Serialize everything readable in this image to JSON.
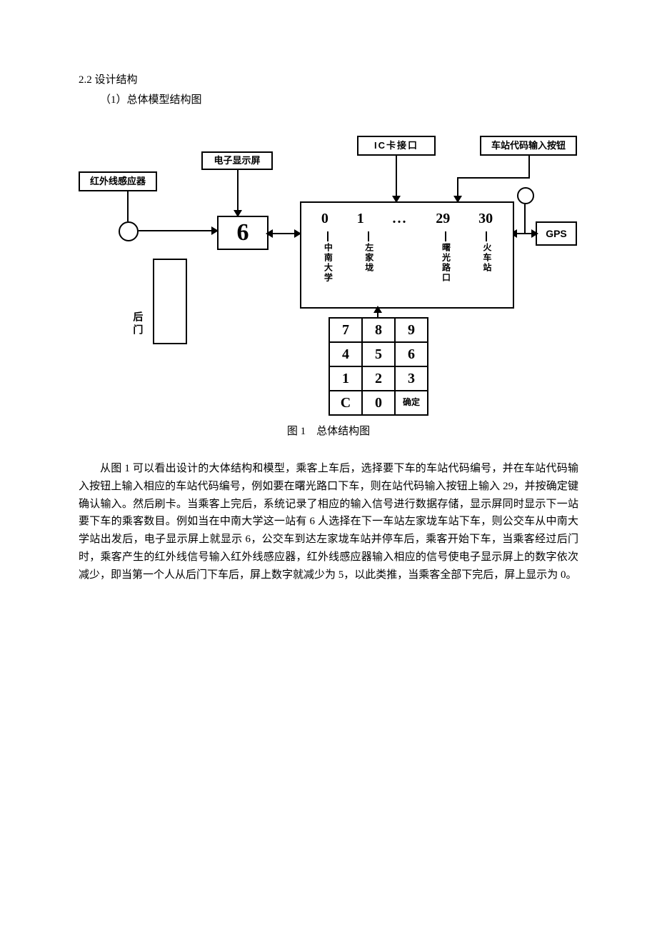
{
  "headings": {
    "section": "2.2 设计结构",
    "sub": "（1）总体模型结构图"
  },
  "diagram": {
    "labels": {
      "ic_card": "IC卡接口",
      "station_code_btn": "车站代码输入按钮",
      "display": "电子显示屏",
      "ir_sensor": "红外线感应器",
      "gps": "GPS",
      "rear_door": "后门",
      "display_value": "6"
    },
    "stations": {
      "codes": [
        "0",
        "1",
        "...",
        "29",
        "30"
      ],
      "names": [
        "中南大学",
        "左家垅",
        "",
        "曙光路口",
        "火车站"
      ]
    },
    "keypad": {
      "rows": [
        [
          "7",
          "8",
          "9"
        ],
        [
          "4",
          "5",
          "6"
        ],
        [
          "1",
          "2",
          "3"
        ],
        [
          "C",
          "0",
          "确定"
        ]
      ]
    },
    "caption": "图 1　总体结构图"
  },
  "paragraph": {
    "p1": "从图 1 可以看出设计的大体结构和模型，乘客上车后，选择要下车的车站代码编号，并在车站代码输入按钮上输入相应的车站代码编号，例如要在曙光路口下车，则在站代码输入按钮上输入 29，并按确定键确认输入。然后刷卡。当乘客上完后，系统记录了相应的输入信号进行数据存储，显示屏同时显示下一站要下车的乘客数目。例如当在中南大学这一站有 6 人选择在下一车站左家垅车站下车，则公交车从中南大学站出发后，电子显示屏上就显示 6，公交车到达左家垅车站并停车后，乘客开始下车，当乘客经过后门时，乘客产生的红外线信号输入红外线感应器，红外线感应器输入相应的信号使电子显示屏上的数字依次减少，即当第一个人从后门下车后，屏上数字就减少为 5，以此类推，当乘客全部下完后，屏上显示为 0。"
  }
}
